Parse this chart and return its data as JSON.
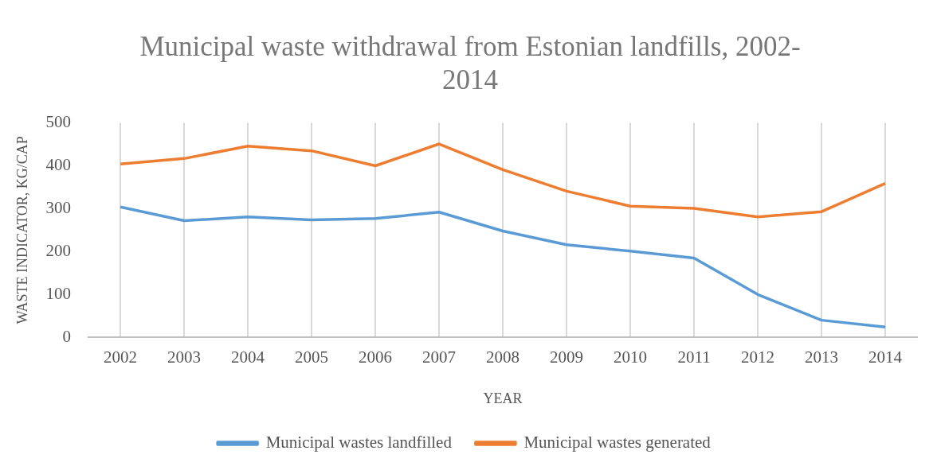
{
  "chart_data": {
    "type": "line",
    "title": "Municipal waste withdrawal from Estonian landfills, 2002-2014",
    "xlabel": "YEAR",
    "ylabel": "WASTE INDICATOR, KG/CAP",
    "categories": [
      "2002",
      "2003",
      "2004",
      "2005",
      "2006",
      "2007",
      "2008",
      "2009",
      "2010",
      "2011",
      "2012",
      "2013",
      "2014"
    ],
    "series": [
      {
        "name": "Municipal wastes landfilled",
        "color": "#5b9bd5",
        "values": [
          304,
          272,
          281,
          274,
          277,
          292,
          248,
          216,
          201,
          185,
          100,
          40,
          24
        ]
      },
      {
        "name": "Municipal wastes generated",
        "color": "#ed7d31",
        "values": [
          404,
          417,
          446,
          435,
          400,
          451,
          391,
          341,
          306,
          301,
          281,
          293,
          359
        ]
      }
    ],
    "ylim": [
      0,
      500
    ],
    "yticks": [
      0,
      100,
      200,
      300,
      400,
      500
    ],
    "grid": "x",
    "legend": "bottom",
    "marker": "none",
    "line_style": "solid"
  }
}
